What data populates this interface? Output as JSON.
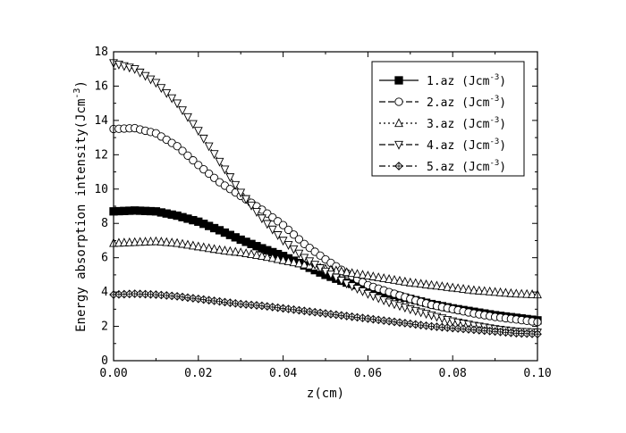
{
  "chart_data": {
    "type": "line",
    "title": "",
    "xlabel": "z(cm)",
    "ylabel": "Energy absorption intensity(Jcm",
    "ylabel_sup": "-3",
    "ylabel_close": ")",
    "xlim": [
      0.0,
      0.1
    ],
    "ylim": [
      0,
      18
    ],
    "x_ticks": [
      0.0,
      0.02,
      0.04,
      0.06,
      0.08,
      0.1
    ],
    "x_tick_labels": [
      "0.00",
      "0.02",
      "0.04",
      "0.06",
      "0.08",
      "0.10"
    ],
    "y_ticks": [
      0,
      2,
      4,
      6,
      8,
      10,
      12,
      14,
      16,
      18
    ],
    "y_tick_labels": [
      "0",
      "2",
      "4",
      "6",
      "8",
      "10",
      "12",
      "14",
      "16",
      "18"
    ],
    "grid": false,
    "legend_position": "top-right",
    "x": [
      0.0,
      0.005,
      0.01,
      0.015,
      0.02,
      0.025,
      0.03,
      0.035,
      0.04,
      0.045,
      0.05,
      0.055,
      0.06,
      0.065,
      0.07,
      0.075,
      0.08,
      0.085,
      0.09,
      0.095,
      0.1
    ],
    "series": [
      {
        "name": "1.az",
        "unit_base": "(Jcm",
        "unit_sup": "-3",
        "unit_close": ")",
        "marker": "filled-square",
        "line_style": "solid",
        "values": [
          8.7,
          8.75,
          8.7,
          8.45,
          8.1,
          7.6,
          7.05,
          6.55,
          6.1,
          5.55,
          5.0,
          4.55,
          4.25,
          3.9,
          3.6,
          3.3,
          3.05,
          2.85,
          2.65,
          2.5,
          2.35
        ]
      },
      {
        "name": "2.az",
        "unit_base": "(Jcm",
        "unit_sup": "-3",
        "unit_close": ")",
        "marker": "open-circle",
        "line_style": "dash",
        "values": [
          13.5,
          13.55,
          13.25,
          12.5,
          11.4,
          10.4,
          9.6,
          8.8,
          7.9,
          6.8,
          5.9,
          5.1,
          4.4,
          4.0,
          3.6,
          3.25,
          3.0,
          2.75,
          2.55,
          2.4,
          2.25
        ]
      },
      {
        "name": "3.az",
        "unit_base": "(Jcm",
        "unit_sup": "-3",
        "unit_close": ")",
        "marker": "open-triangle-up",
        "line_style": "dot",
        "values": [
          6.85,
          6.9,
          6.95,
          6.85,
          6.65,
          6.45,
          6.3,
          6.1,
          5.85,
          5.6,
          5.35,
          5.15,
          4.95,
          4.75,
          4.55,
          4.4,
          4.25,
          4.1,
          4.0,
          3.9,
          3.85
        ]
      },
      {
        "name": "4.az",
        "unit_base": "(Jcm",
        "unit_sup": "-3",
        "unit_close": ")",
        "marker": "open-triangle-down",
        "line_style": "dash",
        "values": [
          17.35,
          17.0,
          16.2,
          15.0,
          13.4,
          11.6,
          9.8,
          8.3,
          7.0,
          6.0,
          5.2,
          4.5,
          3.9,
          3.4,
          3.0,
          2.65,
          2.3,
          2.05,
          1.85,
          1.7,
          1.65
        ]
      },
      {
        "name": "5.az",
        "unit_base": "(Jcm",
        "unit_sup": "-3",
        "unit_close": ")",
        "marker": "crossed-diamond",
        "line_style": "dash-dot",
        "values": [
          3.85,
          3.9,
          3.85,
          3.75,
          3.6,
          3.45,
          3.3,
          3.2,
          3.05,
          2.9,
          2.75,
          2.6,
          2.45,
          2.3,
          2.15,
          2.0,
          1.9,
          1.8,
          1.7,
          1.6,
          1.55
        ]
      }
    ]
  }
}
